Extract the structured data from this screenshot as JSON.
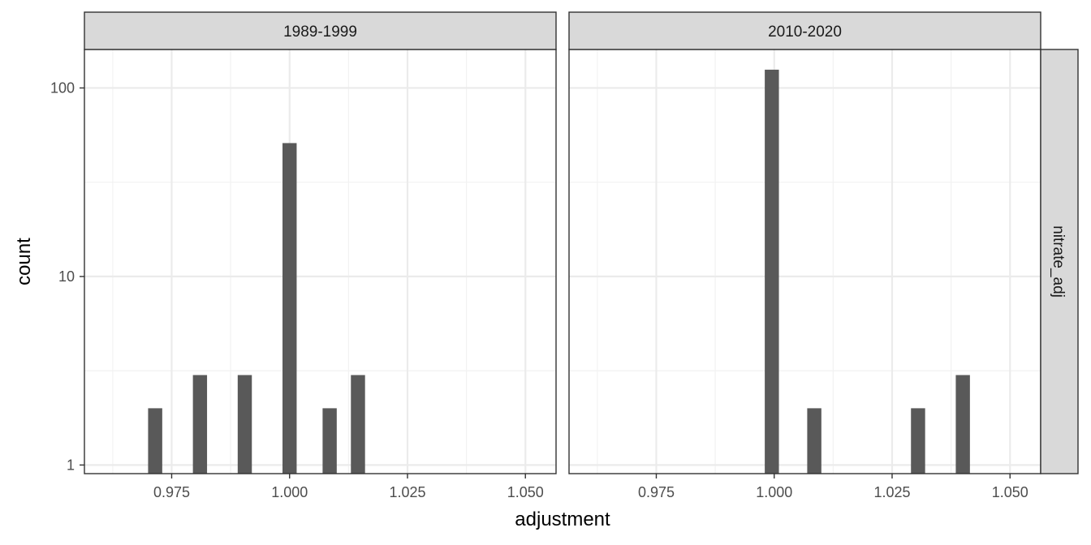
{
  "chart_data": {
    "type": "bar",
    "xlabel": "adjustment",
    "ylabel": "count",
    "y_scale": "log10",
    "ylim": [
      0.9,
      160
    ],
    "xlim": [
      0.9565,
      1.0565
    ],
    "x_ticks": [
      {
        "value": 0.975,
        "label": "0.975"
      },
      {
        "value": 1.0,
        "label": "1.000"
      },
      {
        "value": 1.025,
        "label": "1.025"
      },
      {
        "value": 1.05,
        "label": "1.050"
      }
    ],
    "y_ticks": [
      {
        "value": 1,
        "label": "1"
      },
      {
        "value": 10,
        "label": "10"
      },
      {
        "value": 100,
        "label": "100"
      }
    ],
    "row_strip": "nitrate_adj",
    "grid": true,
    "bar_width": 0.003,
    "bar_color": "#595959",
    "panels": [
      {
        "strip": "1989-1999",
        "bars": [
          {
            "x": 0.9715,
            "count": 2
          },
          {
            "x": 0.981,
            "count": 3
          },
          {
            "x": 0.9905,
            "count": 3
          },
          {
            "x": 1.0,
            "count": 51
          },
          {
            "x": 1.0085,
            "count": 2
          },
          {
            "x": 1.0145,
            "count": 3
          }
        ]
      },
      {
        "strip": "2010-2020",
        "bars": [
          {
            "x": 0.9995,
            "count": 125
          },
          {
            "x": 1.0085,
            "count": 2
          },
          {
            "x": 1.0305,
            "count": 2
          },
          {
            "x": 1.04,
            "count": 3
          }
        ]
      }
    ]
  }
}
